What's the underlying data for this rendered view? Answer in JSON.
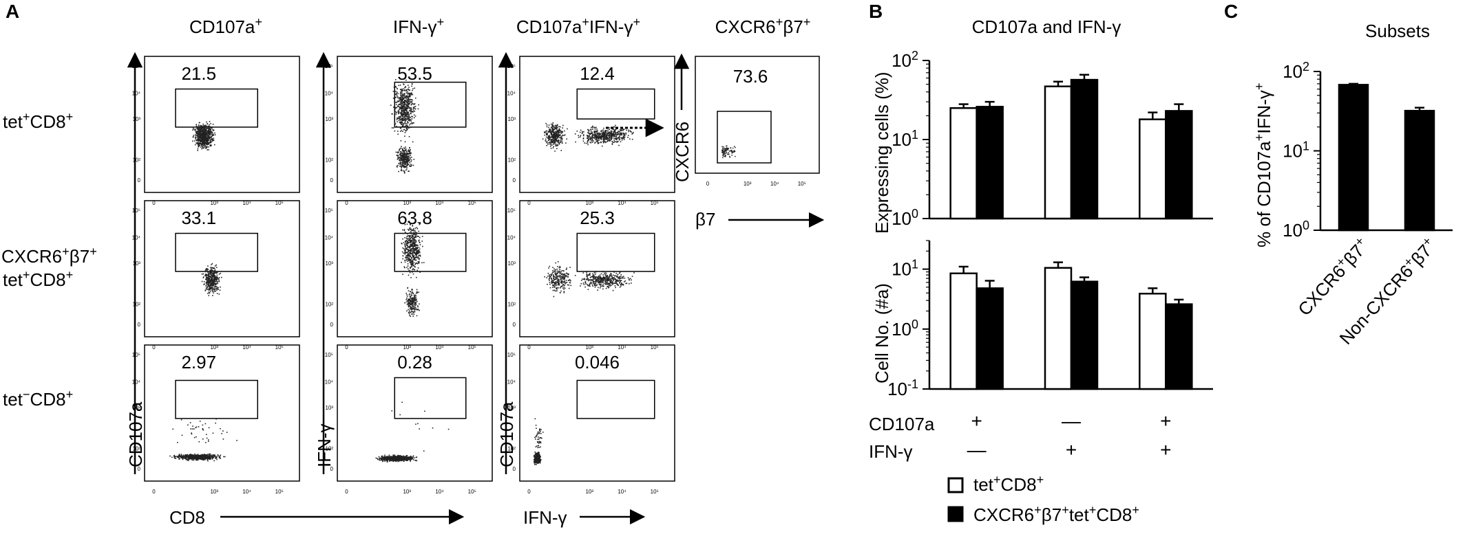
{
  "panel_a": {
    "letter": "A",
    "columns": [
      "CD107a",
      "IFN-γ",
      "CD107a+IFN-γ+",
      "CXCR6+β7+"
    ],
    "rows": [
      "tet+CD8+",
      "CXCR6+β7+",
      "tet+CD8+",
      "tet−CD8+"
    ],
    "values": [
      [
        "21.5",
        "53.5",
        "12.4",
        "73.6"
      ],
      [
        "33.1",
        "63.8",
        "25.3"
      ],
      [
        "2.97",
        "0.28",
        "0.046"
      ]
    ],
    "y_labels": [
      "CD107a",
      "IFN-γ",
      "CD107a",
      "CXCR6"
    ],
    "x_labels": [
      "CD8",
      "IFN-γ",
      "β7"
    ],
    "ticks_x": [
      "0",
      "10³",
      "10⁴",
      "10⁵"
    ],
    "ticks_y": [
      "0",
      "10²",
      "10³",
      "10⁴",
      "10⁵"
    ]
  },
  "panel_b": {
    "letter": "B",
    "title": "CD107a and IFN-γ"
  },
  "panel_c": {
    "letter": "C",
    "title": "Subsets"
  },
  "colors": {
    "series1": "#ffffff",
    "series2": "#000000",
    "dots": "#222222"
  },
  "chart_data": [
    {
      "type": "bar",
      "title": "CD107a and IFN-γ",
      "ylabel": "Expressing cells (%)",
      "yscale": "log",
      "ylim": [
        1,
        100
      ],
      "yticks": [
        "10⁰",
        "10¹",
        "10²"
      ],
      "categories": [
        "CD107a+ IFN-γ−",
        "CD107a− IFN-γ+",
        "CD107a+ IFN-γ+"
      ],
      "category_rows": {
        "CD107a": [
          "+",
          "—",
          "+"
        ],
        "IFN-γ": [
          "—",
          "+",
          "+"
        ]
      },
      "series": [
        {
          "name": "tet+CD8+",
          "values": [
            25,
            47,
            18
          ],
          "errors": [
            3,
            7,
            4
          ]
        },
        {
          "name": "CXCR6+β7+tet+CD8+",
          "values": [
            26,
            57,
            23
          ],
          "errors": [
            4,
            9,
            5
          ]
        }
      ]
    },
    {
      "type": "bar",
      "ylabel": "Cell No. (#a)",
      "yscale": "log",
      "ylim": [
        0.1,
        30
      ],
      "yticks": [
        "10⁻¹",
        "10⁰",
        "10¹"
      ],
      "categories": [
        "CD107a+ IFN-γ−",
        "CD107a− IFN-γ+",
        "CD107a+ IFN-γ+"
      ],
      "series": [
        {
          "name": "tet+CD8+",
          "values": [
            8.5,
            10.5,
            3.9
          ],
          "errors": [
            2.5,
            2.5,
            0.9
          ]
        },
        {
          "name": "CXCR6+β7+tet+CD8+",
          "values": [
            4.8,
            6.2,
            2.6
          ],
          "errors": [
            1.6,
            1.1,
            0.5
          ]
        }
      ]
    },
    {
      "type": "bar",
      "title": "Subsets",
      "ylabel": "% of CD107a+IFN-γ+",
      "yscale": "log",
      "ylim": [
        1,
        100
      ],
      "yticks": [
        "10⁰",
        "10¹",
        "10²"
      ],
      "categories": [
        "CXCR6+β7+",
        "Non-CXCR6+β7+"
      ],
      "series": [
        {
          "values": [
            68,
            32
          ],
          "errors": [
            2,
            3
          ]
        }
      ]
    }
  ],
  "legend": [
    "tet+CD8+",
    "CXCR6+β7+tet+CD8+"
  ]
}
